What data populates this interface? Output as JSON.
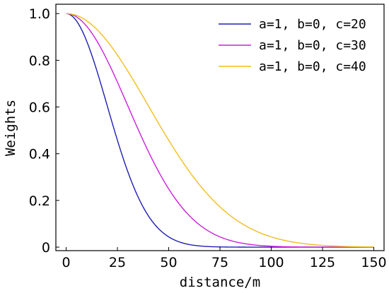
{
  "chart_data": {
    "type": "line",
    "title": "",
    "xlabel": "distance/m",
    "ylabel": "Weights",
    "xlim": [
      -5,
      155
    ],
    "ylim": [
      -0.015,
      1.04
    ],
    "xticks": [
      0,
      25,
      50,
      75,
      100,
      125,
      150
    ],
    "xtick_labels": [
      "0",
      "25",
      "50",
      "75",
      "100",
      "125",
      "150"
    ],
    "yticks": [
      0,
      0.2,
      0.4,
      0.6,
      0.8,
      1.0
    ],
    "ytick_labels": [
      "0",
      "0.2",
      "0.4",
      "0.6",
      "0.8",
      "1.0"
    ],
    "grid": false,
    "legend_position": "top-right",
    "x_start": 0,
    "x_end": 150,
    "sample_step": 1,
    "series": [
      {
        "name": "a=1, b=0, c=20",
        "a": 1,
        "b": 0,
        "c": 20,
        "color": "#1f1fb4"
      },
      {
        "name": "a=1, b=0, c=30",
        "a": 1,
        "b": 0,
        "c": 30,
        "color": "#cc1fdc"
      },
      {
        "name": "a=1, b=0, c=40",
        "a": 1,
        "b": 0,
        "c": 40,
        "color": "#f0be1e"
      }
    ]
  }
}
